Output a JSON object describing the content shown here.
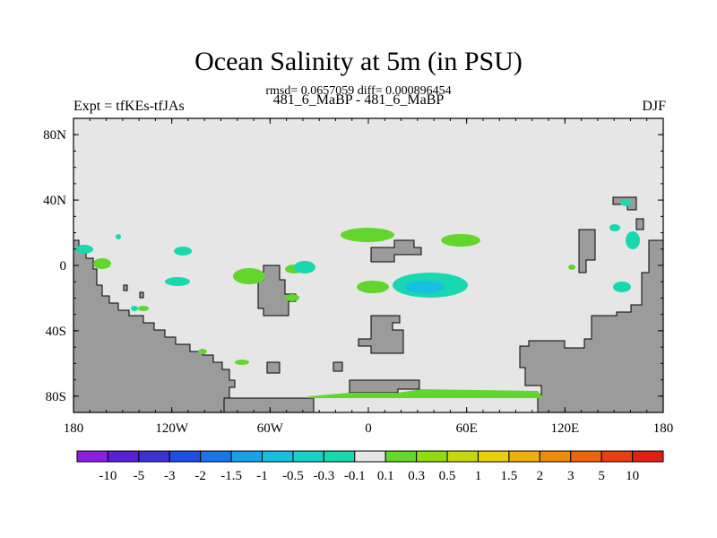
{
  "title": "Ocean Salinity at 5m (in PSU)",
  "stats": "rmsd= 0.0657059 diff= 0.000896454",
  "left_label": "Expt = tfKEs-tfJAs",
  "center_label": "481_6_MaBP - 481_6_MaBP",
  "right_label": "DJF",
  "axes": {
    "y_ticks": [
      "80N",
      "40N",
      "0",
      "40S",
      "80S"
    ],
    "x_ticks": [
      "180",
      "120W",
      "60W",
      "0",
      "60E",
      "120E",
      "180"
    ]
  },
  "colorbar": {
    "labels": [
      "-10",
      "-5",
      "-3",
      "-2",
      "-1.5",
      "-1",
      "-0.5",
      "-0.3",
      "-0.1",
      "0.1",
      "0.3",
      "0.5",
      "1",
      "1.5",
      "2",
      "3",
      "5",
      "10"
    ],
    "colors": [
      "#8b1fe0",
      "#5a20d8",
      "#3a32d2",
      "#1f4fe0",
      "#1b74e8",
      "#1aa0e6",
      "#19bfe0",
      "#17d0cc",
      "#18d8b0",
      "#e6e6e6",
      "#62d62c",
      "#8fdc10",
      "#c7d810",
      "#e8d00c",
      "#f0b00c",
      "#ef8a0a",
      "#ec640c",
      "#e83e10",
      "#e02010"
    ]
  },
  "colors": {
    "ocean": "#e6e6e6",
    "land": "#9b9b9b",
    "positive": "#62d62c",
    "negative_light": "#18d8b0",
    "negative": "#19bfe0"
  }
}
